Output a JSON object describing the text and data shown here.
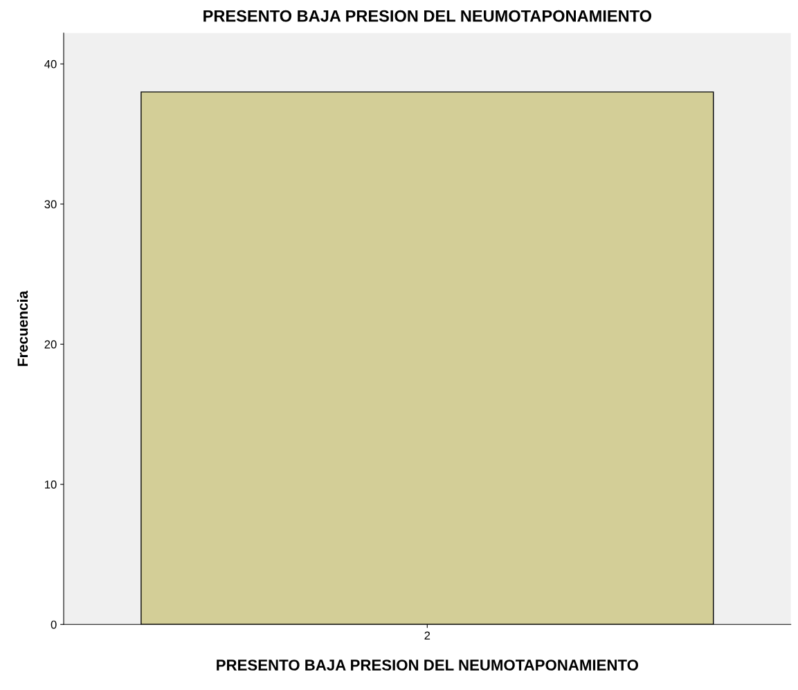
{
  "chart_data": {
    "type": "bar",
    "title": "PRESENTO BAJA PRESION DEL NEUMOTAPONAMIENTO",
    "xlabel": "PRESENTO BAJA PRESION DEL NEUMOTAPONAMIENTO",
    "ylabel": "Frecuencia",
    "categories": [
      "2"
    ],
    "values": [
      38
    ],
    "color": "#d3ce97",
    "ylim": [
      0,
      42.2
    ],
    "yticks": [
      0,
      10,
      20,
      30,
      40
    ],
    "grid": false,
    "legend": false
  }
}
